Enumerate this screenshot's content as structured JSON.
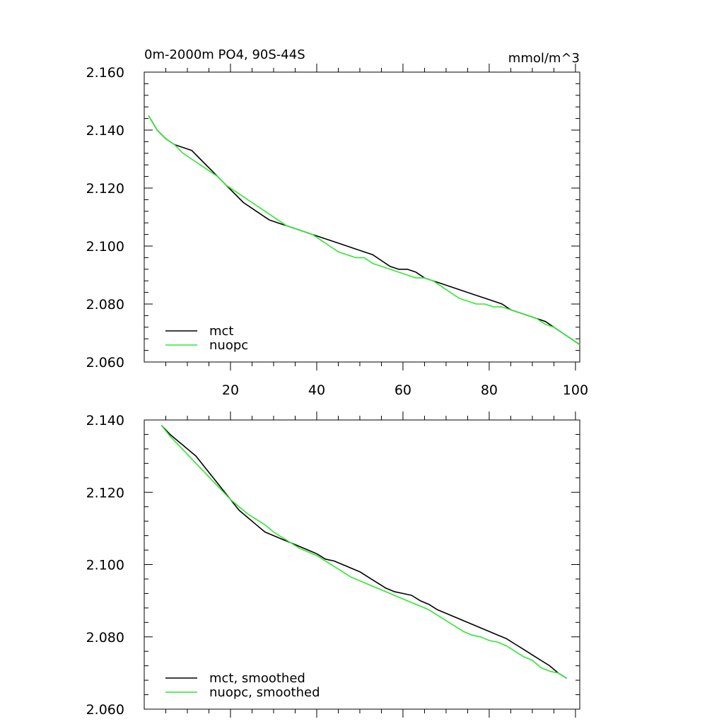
{
  "chart_data": [
    {
      "type": "line",
      "title": "0m-2000m PO4, 90S-44S",
      "units": "mmol/m^3",
      "xlim": [
        0,
        101
      ],
      "ylim": [
        2.06,
        2.16
      ],
      "xticks": [
        20,
        40,
        60,
        80,
        100
      ],
      "xtick_labels": [
        "20",
        "40",
        "60",
        "80",
        "100"
      ],
      "yticks": [
        2.06,
        2.08,
        2.1,
        2.12,
        2.14,
        2.16
      ],
      "ytick_labels": [
        "2.060",
        "2.080",
        "2.100",
        "2.120",
        "2.140",
        "2.160"
      ],
      "legend_position": "bottom-left",
      "series": [
        {
          "name": "mct",
          "color": "#000000",
          "x": [
            1,
            3,
            5,
            7,
            9,
            11,
            13,
            15,
            17,
            19,
            21,
            23,
            25,
            27,
            29,
            31,
            33,
            35,
            37,
            39,
            41,
            43,
            45,
            47,
            49,
            51,
            53,
            55,
            57,
            59,
            61,
            63,
            65,
            67,
            69,
            71,
            73,
            75,
            77,
            79,
            81,
            83,
            85,
            87,
            89,
            91,
            93,
            95,
            97,
            99,
            101
          ],
          "values": [
            2.145,
            2.14,
            2.137,
            2.135,
            2.134,
            2.133,
            2.13,
            2.127,
            2.124,
            2.121,
            2.118,
            2.115,
            2.113,
            2.111,
            2.109,
            2.108,
            2.107,
            2.106,
            2.105,
            2.104,
            2.103,
            2.102,
            2.101,
            2.1,
            2.099,
            2.098,
            2.097,
            2.095,
            2.093,
            2.092,
            2.092,
            2.091,
            2.089,
            2.088,
            2.087,
            2.086,
            2.085,
            2.084,
            2.083,
            2.082,
            2.081,
            2.08,
            2.078,
            2.077,
            2.076,
            2.075,
            2.074,
            2.072,
            2.07,
            2.068,
            2.066
          ]
        },
        {
          "name": "nuopc",
          "color": "#33e633",
          "x": [
            1,
            3,
            5,
            7,
            9,
            11,
            13,
            15,
            17,
            19,
            21,
            23,
            25,
            27,
            29,
            31,
            33,
            35,
            37,
            39,
            41,
            43,
            45,
            47,
            49,
            51,
            53,
            55,
            57,
            59,
            61,
            63,
            65,
            67,
            69,
            71,
            73,
            75,
            77,
            79,
            81,
            83,
            85,
            87,
            89,
            91,
            93,
            95,
            97,
            99,
            101
          ],
          "values": [
            2.145,
            2.14,
            2.137,
            2.135,
            2.132,
            2.13,
            2.128,
            2.126,
            2.124,
            2.121,
            2.119,
            2.117,
            2.115,
            2.113,
            2.111,
            2.109,
            2.107,
            2.106,
            2.105,
            2.104,
            2.102,
            2.1,
            2.098,
            2.097,
            2.096,
            2.096,
            2.094,
            2.093,
            2.092,
            2.091,
            2.09,
            2.089,
            2.089,
            2.088,
            2.086,
            2.084,
            2.082,
            2.081,
            2.08,
            2.08,
            2.079,
            2.079,
            2.078,
            2.077,
            2.076,
            2.075,
            2.073,
            2.072,
            2.07,
            2.068,
            2.066
          ]
        }
      ]
    },
    {
      "type": "line",
      "title": "",
      "units": "",
      "xlim": [
        0,
        101
      ],
      "ylim": [
        2.06,
        2.14
      ],
      "xticks": [
        20,
        40,
        60,
        80,
        100
      ],
      "xtick_labels": [],
      "yticks": [
        2.06,
        2.08,
        2.1,
        2.12,
        2.14
      ],
      "ytick_labels": [
        "2.060",
        "2.080",
        "2.100",
        "2.120",
        "2.140"
      ],
      "legend_position": "bottom-left",
      "series": [
        {
          "name": "mct, smoothed",
          "color": "#000000",
          "x": [
            4,
            6,
            8,
            10,
            12,
            14,
            16,
            18,
            20,
            22,
            24,
            26,
            28,
            30,
            32,
            34,
            36,
            38,
            40,
            42,
            44,
            46,
            48,
            50,
            52,
            54,
            56,
            58,
            60,
            62,
            64,
            66,
            68,
            70,
            72,
            74,
            76,
            78,
            80,
            82,
            84,
            86,
            88,
            90,
            92,
            94,
            96,
            98
          ],
          "values": [
            2.1385,
            2.136,
            2.134,
            2.132,
            2.13,
            2.127,
            2.124,
            2.121,
            2.118,
            2.115,
            2.113,
            2.111,
            2.109,
            2.108,
            2.107,
            2.106,
            2.105,
            2.104,
            2.103,
            2.1015,
            2.101,
            2.1,
            2.099,
            2.098,
            2.0965,
            2.095,
            2.0935,
            2.0925,
            2.092,
            2.0915,
            2.09,
            2.089,
            2.0875,
            2.0865,
            2.0855,
            2.0845,
            2.0835,
            2.0825,
            2.0815,
            2.0805,
            2.0795,
            2.078,
            2.0765,
            2.075,
            2.0735,
            2.072,
            2.07,
            2.0685
          ]
        },
        {
          "name": "nuopc, smoothed",
          "color": "#33e633",
          "x": [
            4,
            6,
            8,
            10,
            12,
            14,
            16,
            18,
            20,
            22,
            24,
            26,
            28,
            30,
            32,
            34,
            36,
            38,
            40,
            42,
            44,
            46,
            48,
            50,
            52,
            54,
            56,
            58,
            60,
            62,
            64,
            66,
            68,
            70,
            72,
            74,
            76,
            78,
            80,
            82,
            84,
            86,
            88,
            90,
            92,
            94,
            96,
            98
          ],
          "values": [
            2.1385,
            2.1355,
            2.133,
            2.1305,
            2.128,
            2.1255,
            2.123,
            2.1205,
            2.118,
            2.116,
            2.114,
            2.1125,
            2.111,
            2.109,
            2.1075,
            2.106,
            2.1045,
            2.1035,
            2.1025,
            2.101,
            2.0995,
            2.098,
            2.0965,
            2.0955,
            2.0945,
            2.0935,
            2.0925,
            2.0915,
            2.0905,
            2.0895,
            2.0885,
            2.0875,
            2.086,
            2.0845,
            2.083,
            2.0815,
            2.0805,
            2.08,
            2.079,
            2.0785,
            2.0775,
            2.076,
            2.0745,
            2.0735,
            2.0715,
            2.0705,
            2.07,
            2.0685
          ]
        }
      ]
    }
  ]
}
